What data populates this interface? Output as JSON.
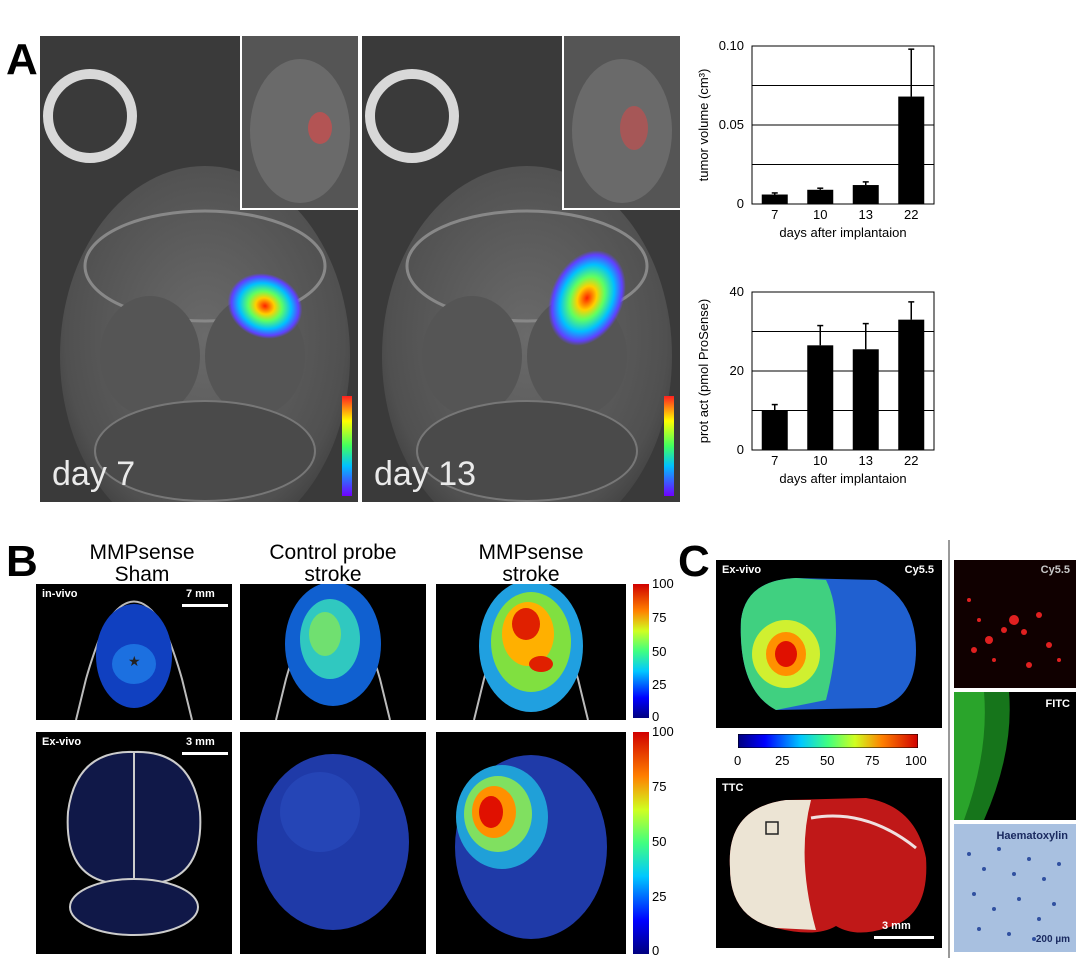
{
  "panels": {
    "a": "A",
    "b": "B",
    "c": "C"
  },
  "panel_a": {
    "day7_label": "day 7",
    "day13_label": "day 13"
  },
  "panel_b": {
    "titles": [
      [
        "MMPsense",
        "Sham"
      ],
      [
        "Control probe",
        "stroke"
      ],
      [
        "MMPsense",
        "stroke"
      ]
    ],
    "in_vivo_label": "in-vivo",
    "ex_vivo_label": "Ex-vivo",
    "scale_top": "7 mm",
    "scale_bottom": "3 mm",
    "colorbar_ticks": [
      "100",
      "75",
      "50",
      "25",
      "0"
    ]
  },
  "panel_c": {
    "ex_vivo_label": "Ex-vivo",
    "cy55_label": "Cy5.5",
    "colorbar_ticks": [
      "0",
      "25",
      "50",
      "75",
      "100"
    ],
    "ttc_label": "TTC",
    "scale_ttc": "3 mm",
    "right_labels": [
      "Cy5.5",
      "FITC",
      "Haematoxylin"
    ],
    "scale_micro": "200 µm"
  },
  "chart_data": [
    {
      "type": "bar",
      "categories": [
        "7",
        "10",
        "13",
        "22"
      ],
      "values": [
        0.006,
        0.009,
        0.012,
        0.068
      ],
      "errors": [
        0.001,
        0.001,
        0.002,
        0.03
      ],
      "ylim": [
        0,
        0.1
      ],
      "yticks": [
        "0",
        "0.05",
        "0.10"
      ],
      "ylabel": "tumor volume (cm³)",
      "xlabel": "days after implantaion",
      "grid": true
    },
    {
      "type": "bar",
      "categories": [
        "7",
        "10",
        "13",
        "22"
      ],
      "values": [
        10,
        26.5,
        25.5,
        33
      ],
      "errors": [
        1.5,
        5,
        6.5,
        4.5
      ],
      "ylim": [
        0,
        40
      ],
      "yticks": [
        "0",
        "20",
        "40"
      ],
      "ylabel": "prot act (pmol ProSense)",
      "xlabel": "days after implantaion",
      "grid": true
    }
  ],
  "colors": {
    "bar": "#000000",
    "mri_bg": "#3b3b3b",
    "tile_bg": "#000000"
  }
}
